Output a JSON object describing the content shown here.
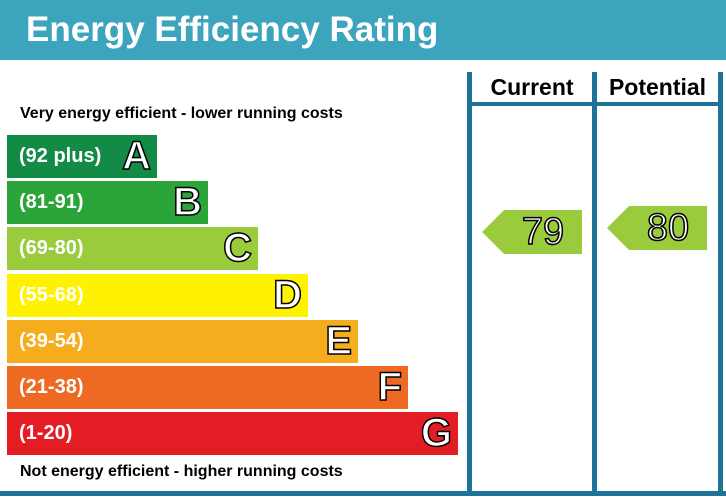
{
  "title": "Energy Efficiency Rating",
  "header_color": "#3ca4bc",
  "frame_color": "#1f7398",
  "columns": {
    "current": "Current",
    "potential": "Potential"
  },
  "top_caption": "Very energy efficient - lower running costs",
  "bottom_caption": "Not energy efficient - higher running costs",
  "chart_data": {
    "type": "bar",
    "title": "Energy Efficiency Rating",
    "bands": [
      {
        "range": "(92 plus)",
        "letter": "A",
        "color": "#138a46"
      },
      {
        "range": "(81-91)",
        "letter": "B",
        "color": "#2ba43a"
      },
      {
        "range": "(69-80)",
        "letter": "C",
        "color": "#9acb3c"
      },
      {
        "range": "(55-68)",
        "letter": "D",
        "color": "#fff200"
      },
      {
        "range": "(39-54)",
        "letter": "E",
        "color": "#f5ad1d"
      },
      {
        "range": "(21-38)",
        "letter": "F",
        "color": "#ee6a23"
      },
      {
        "range": "(1-20)",
        "letter": "G",
        "color": "#e31d23"
      }
    ],
    "current": {
      "value": "79",
      "band": "C",
      "color": "#9acb3c"
    },
    "potential": {
      "value": "80",
      "band": "C",
      "color": "#9acb3c"
    }
  }
}
